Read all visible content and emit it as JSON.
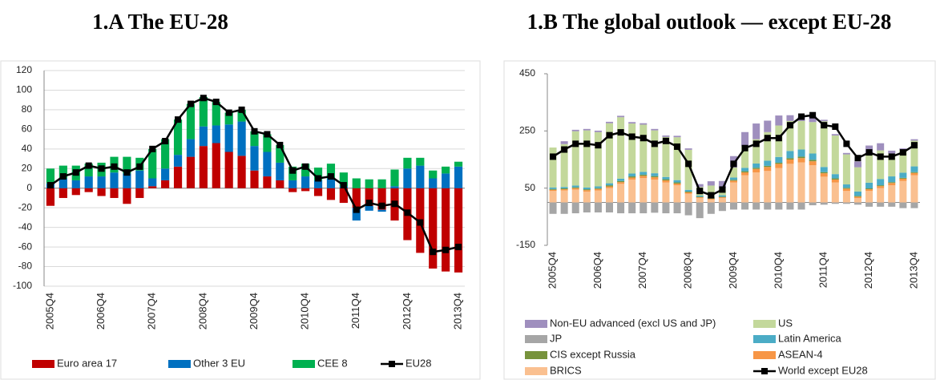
{
  "chart_data": [
    {
      "type": "bar",
      "title": "1.A The EU-28",
      "stacked": true,
      "grid": true,
      "categories": [
        "2005Q4",
        null,
        null,
        null,
        "2006Q4",
        null,
        null,
        null,
        "2007Q4",
        null,
        null,
        null,
        "2008Q4",
        null,
        null,
        null,
        "2009Q4",
        null,
        null,
        null,
        "2010Q4",
        null,
        null,
        null,
        "2011Q4",
        null,
        null,
        null,
        "2012Q4",
        null,
        null,
        null,
        "2013Q4"
      ],
      "ylim": [
        -100,
        120
      ],
      "yticks": [
        -100,
        -80,
        -60,
        -40,
        -20,
        0,
        20,
        40,
        60,
        80,
        100,
        120
      ],
      "series": [
        {
          "name": "Euro area 17",
          "color": "#c00000",
          "values": [
            -18,
            -10,
            -7,
            -4,
            -8,
            -10,
            -16,
            -10,
            2,
            8,
            22,
            32,
            43,
            46,
            37,
            33,
            18,
            12,
            8,
            -4,
            -3,
            -8,
            -12,
            -15,
            -20,
            -18,
            -22,
            -33,
            -53,
            -66,
            -82,
            -85,
            -86
          ]
        },
        {
          "name": "Other 3 EU",
          "color": "#0070c0",
          "values": [
            5,
            10,
            8,
            12,
            12,
            16,
            15,
            18,
            8,
            12,
            12,
            18,
            20,
            18,
            28,
            35,
            25,
            25,
            18,
            8,
            12,
            8,
            10,
            2,
            -13,
            -5,
            -2,
            2,
            20,
            23,
            10,
            15,
            22
          ]
        },
        {
          "name": "CEE 8",
          "color": "#00b050",
          "values": [
            15,
            13,
            15,
            13,
            14,
            16,
            17,
            13,
            30,
            30,
            36,
            36,
            30,
            24,
            12,
            12,
            15,
            18,
            18,
            14,
            13,
            13,
            15,
            14,
            10,
            9,
            9,
            17,
            11,
            8,
            8,
            7,
            5
          ]
        },
        {
          "name": "EU28",
          "color": "#000000",
          "type": "line",
          "values": [
            3,
            12,
            16,
            23,
            20,
            22,
            16,
            22,
            40,
            48,
            70,
            86,
            92,
            88,
            77,
            80,
            58,
            55,
            44,
            18,
            22,
            10,
            12,
            3,
            -22,
            -15,
            -18,
            -16,
            -25,
            -35,
            -65,
            -63,
            -60
          ]
        }
      ]
    },
    {
      "type": "bar",
      "title": "1.B The global outlook — except EU-28",
      "stacked": true,
      "grid": false,
      "categories": [
        "2005Q4",
        null,
        null,
        null,
        "2006Q4",
        null,
        null,
        null,
        "2007Q4",
        null,
        null,
        null,
        "2008Q4",
        null,
        null,
        null,
        "2009Q4",
        null,
        null,
        null,
        "2010Q4",
        null,
        null,
        null,
        "2011Q4",
        null,
        null,
        null,
        "2012Q4",
        null,
        null,
        null,
        "2013Q4"
      ],
      "ylim": [
        -150,
        450
      ],
      "yticks": [
        -150,
        50,
        250,
        450
      ],
      "series": [
        {
          "name": "BRICS",
          "color": "#fac090",
          "values": [
            40,
            42,
            45,
            38,
            42,
            50,
            65,
            80,
            85,
            80,
            70,
            60,
            30,
            15,
            10,
            15,
            70,
            95,
            105,
            110,
            120,
            135,
            140,
            130,
            90,
            70,
            40,
            15,
            40,
            50,
            60,
            75,
            95
          ]
        },
        {
          "name": "ASEAN-4",
          "color": "#f79646",
          "values": [
            4,
            4,
            5,
            5,
            5,
            6,
            6,
            7,
            8,
            8,
            7,
            6,
            5,
            3,
            3,
            3,
            6,
            10,
            12,
            14,
            15,
            15,
            15,
            14,
            12,
            10,
            8,
            5,
            6,
            7,
            8,
            8,
            8
          ]
        },
        {
          "name": "CIS except Russia",
          "color": "#77933c",
          "values": [
            3,
            3,
            3,
            3,
            3,
            4,
            4,
            4,
            4,
            4,
            4,
            4,
            3,
            2,
            2,
            2,
            3,
            4,
            4,
            4,
            4,
            5,
            5,
            5,
            4,
            4,
            3,
            3,
            3,
            3,
            3,
            3,
            3
          ]
        },
        {
          "name": "Latin America",
          "color": "#4bacc6",
          "values": [
            5,
            5,
            6,
            6,
            6,
            7,
            8,
            10,
            10,
            10,
            8,
            8,
            6,
            4,
            4,
            5,
            8,
            12,
            15,
            18,
            20,
            25,
            25,
            22,
            18,
            15,
            12,
            15,
            20,
            22,
            20,
            18,
            20
          ]
        },
        {
          "name": "US",
          "color": "#c3d89b",
          "values": [
            140,
            150,
            190,
            200,
            190,
            210,
            215,
            175,
            165,
            150,
            140,
            150,
            140,
            30,
            40,
            25,
            35,
            75,
            85,
            100,
            110,
            105,
            100,
            110,
            160,
            135,
            105,
            85,
            100,
            100,
            80,
            80,
            90
          ]
        },
        {
          "name": "Non-EU advanced (excl US and JP)",
          "color": "#9f8fbe",
          "values": [
            0,
            10,
            5,
            5,
            5,
            5,
            5,
            5,
            5,
            5,
            5,
            5,
            5,
            10,
            15,
            25,
            40,
            50,
            55,
            40,
            35,
            20,
            15,
            20,
            5,
            5,
            5,
            20,
            30,
            25,
            10,
            5,
            5
          ]
        },
        {
          "name": "JP",
          "color": "#a6a6a6",
          "values": [
            -40,
            -40,
            -38,
            -35,
            -35,
            -35,
            -38,
            -38,
            -38,
            -36,
            -38,
            -38,
            -45,
            -55,
            -40,
            -30,
            -25,
            -25,
            -25,
            -25,
            -25,
            -25,
            -25,
            -10,
            -8,
            -5,
            -5,
            -8,
            -15,
            -15,
            -15,
            -20,
            -20
          ]
        },
        {
          "name": "World except EU28",
          "color": "#000000",
          "type": "line",
          "values": [
            160,
            185,
            205,
            205,
            200,
            235,
            245,
            230,
            225,
            205,
            215,
            195,
            135,
            40,
            25,
            45,
            135,
            190,
            205,
            225,
            225,
            270,
            300,
            305,
            270,
            265,
            205,
            155,
            175,
            160,
            160,
            175,
            200
          ]
        }
      ]
    }
  ]
}
